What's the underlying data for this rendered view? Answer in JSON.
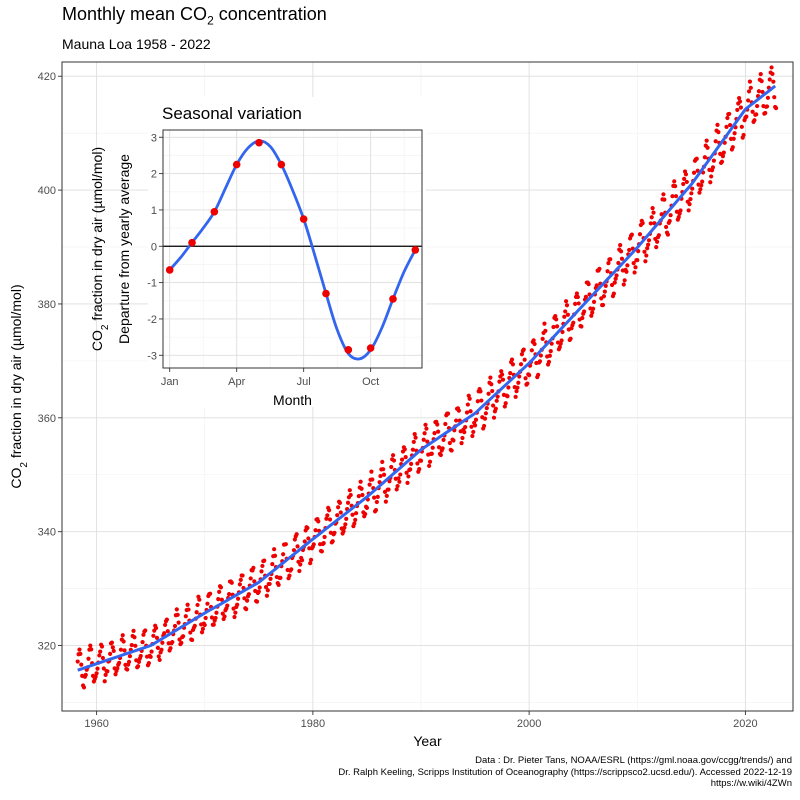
{
  "header": {
    "title_prefix": "Monthly mean CO",
    "title_sub": "2",
    "title_suffix": " concentration",
    "subtitle": "Mauna Loa 1958 - 2022"
  },
  "caption": {
    "line1": "Data : Dr. Pieter Tans, NOAA/ESRL (https://gml.noaa.gov/ccgg/trends/) and",
    "line2": "Dr. Ralph Keeling, Scripps Institution of Oceanography (https://scrippsco2.ucsd.edu/). Accessed  2022-12-19",
    "line3": "https://w.wiki/4ZWn"
  },
  "colors": {
    "points": "#ee0000",
    "trend": "#3366ee",
    "grid_major": "#dedede",
    "grid_minor": "#f0f0f0",
    "panel_border": "#333333"
  },
  "chart_data": [
    {
      "type": "scatter",
      "xlabel": "Year",
      "ylabel_prefix": "CO",
      "ylabel_sub": "2",
      "ylabel_suffix": " fraction in dry air (µmol/mol)",
      "xlim": [
        1956.8,
        2024.4
      ],
      "ylim": [
        308.5,
        422.5
      ],
      "x_ticks": [
        1960,
        1980,
        2000,
        2020
      ],
      "x_tick_labels": [
        "1960",
        "1980",
        "2000",
        "2020"
      ],
      "y_ticks": [
        320,
        340,
        360,
        380,
        400,
        420
      ],
      "y_tick_labels": [
        "320",
        "340",
        "360",
        "380",
        "400",
        "420"
      ],
      "grid": true,
      "x_start": 1958.25,
      "x_end": 2022.9,
      "trend_anchor_years": [
        1958,
        1960,
        1965,
        1970,
        1975,
        1980,
        1985,
        1990,
        1995,
        2000,
        2005,
        2010,
        2015,
        2020,
        2022.9
      ],
      "trend_anchor_values": [
        315.5,
        316.8,
        320.0,
        325.7,
        331.1,
        338.7,
        346.1,
        354.4,
        360.8,
        369.6,
        379.8,
        389.9,
        401.0,
        414.2,
        418.5
      ],
      "seasonal_amplitude": [
        -1.6,
        -0.7,
        0.1,
        1.1,
        2.4,
        3.0,
        2.4,
        0.7,
        -1.5,
        -3.1,
        -2.9,
        -1.8
      ],
      "point_spread": 0.55
    },
    {
      "type": "line",
      "title": "Seasonal variation",
      "xlabel": "Month",
      "ylabel_line1_prefix": "CO",
      "ylabel_line1_sub": "2",
      "ylabel_line1_suffix": " fraction in dry air (µmol/mol)",
      "ylabel_line2": "Departure from yearly average",
      "xlim": [
        0.7,
        12.3
      ],
      "ylim": [
        -3.35,
        3.2
      ],
      "x_ticks": [
        1,
        4,
        7,
        10
      ],
      "x_tick_labels": [
        "Jan",
        "Apr",
        "Jul",
        "Oct"
      ],
      "y_ticks": [
        -3,
        -2,
        -1,
        0,
        1,
        2,
        3
      ],
      "y_tick_labels": [
        "-3",
        "-2",
        "-1",
        "0",
        "1",
        "2",
        "3"
      ],
      "months": [
        1,
        2,
        3,
        4,
        5,
        6,
        7,
        8,
        9,
        10,
        11,
        12
      ],
      "values": [
        -0.65,
        0.1,
        0.95,
        2.25,
        2.85,
        2.25,
        0.75,
        -1.3,
        -2.85,
        -2.8,
        -1.45,
        -0.1
      ],
      "smooth_x": [
        1,
        1.5,
        2,
        2.5,
        3,
        3.5,
        4,
        4.5,
        5,
        5.5,
        6,
        6.5,
        7,
        7.5,
        8,
        8.5,
        9,
        9.5,
        10,
        10.5,
        11,
        11.5,
        12
      ],
      "smooth_y": [
        -0.65,
        -0.3,
        0.1,
        0.5,
        0.95,
        1.6,
        2.25,
        2.7,
        2.9,
        2.75,
        2.25,
        1.55,
        0.75,
        -0.25,
        -1.3,
        -2.3,
        -2.95,
        -3.1,
        -2.85,
        -2.25,
        -1.45,
        -0.7,
        -0.1
      ],
      "hline": 0,
      "grid": true
    }
  ]
}
